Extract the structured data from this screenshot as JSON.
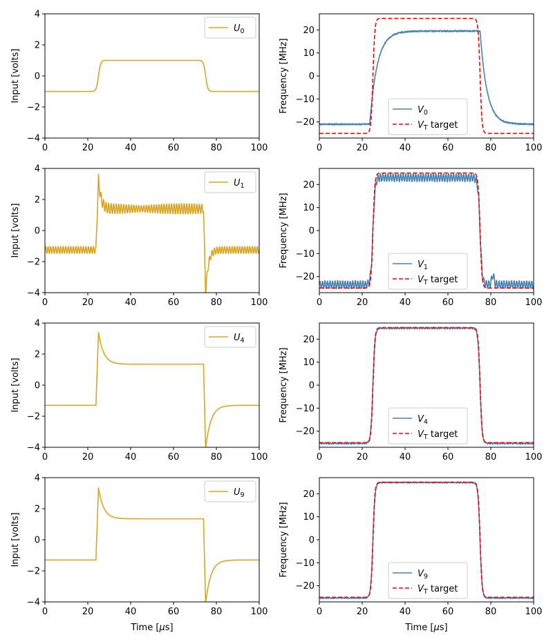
{
  "figure": {
    "x_label": "Time [μs]",
    "x_label_main": "Time [",
    "x_label_mu": "μ",
    "x_label_unit": "s]"
  },
  "colors": {
    "input": "#DAA520",
    "response": "#4682B4",
    "target": "#FF0000"
  },
  "chart_data": [
    {
      "id": "u0",
      "type": "line",
      "ylabel": "Input [volts]",
      "xlim": [
        0,
        100
      ],
      "ylim": [
        -4,
        4
      ],
      "xticks": [
        0,
        20,
        40,
        60,
        80,
        100
      ],
      "yticks": [
        -4,
        -2,
        0,
        2,
        4
      ],
      "legend_position": "top-right",
      "series": [
        {
          "name": "U0",
          "sym": "U",
          "sub": "0",
          "color": "#DAA520",
          "dash": false,
          "shape": {
            "kind": "pulse",
            "low": -1.0,
            "high": 1.0,
            "rise": 25,
            "fall": 75,
            "width": 0.5
          }
        }
      ]
    },
    {
      "id": "v0",
      "type": "line",
      "ylabel": "Frequency [MHz]",
      "xlim": [
        0,
        100
      ],
      "ylim": [
        -27,
        27
      ],
      "xticks": [
        0,
        20,
        40,
        60,
        80,
        100
      ],
      "yticks": [
        -20,
        -10,
        0,
        10,
        20
      ],
      "legend_position": "bottom-center",
      "series": [
        {
          "name": "V0",
          "sym": "V",
          "sub": "0",
          "color": "#4682B4",
          "dash": false,
          "shape": {
            "kind": "slow",
            "low": -21.0,
            "high": 19.5,
            "rise": 25,
            "fall": 75,
            "tau_rise": 3.5,
            "tau_fall": 3.2,
            "noise": 0.3
          }
        },
        {
          "name": "VT target",
          "sym": "V",
          "sub": "T",
          "suffix": " target",
          "color": "#FF0000",
          "dash": true,
          "shape": {
            "kind": "pulse",
            "low": -25,
            "high": 25,
            "rise": 25,
            "fall": 75,
            "width": 0.45
          }
        }
      ]
    },
    {
      "id": "u1",
      "type": "line",
      "ylabel": "Input [volts]",
      "xlim": [
        0,
        100
      ],
      "ylim": [
        -4,
        4
      ],
      "xticks": [
        0,
        20,
        40,
        60,
        80,
        100
      ],
      "yticks": [
        -4,
        -2,
        0,
        2,
        4
      ],
      "legend_position": "top-right",
      "series": [
        {
          "name": "U1",
          "sym": "U",
          "sub": "1",
          "color": "#DAA520",
          "dash": false,
          "shape": {
            "kind": "overshoot",
            "low": -1.25,
            "high": 1.4,
            "rise": 25,
            "fall": 75,
            "peak": 3.3,
            "trough": -4.1,
            "tau": 1.2,
            "ripple": 0.22,
            "freq": 0.85
          }
        }
      ]
    },
    {
      "id": "v1",
      "type": "line",
      "ylabel": "Frequency [MHz]",
      "xlim": [
        0,
        100
      ],
      "ylim": [
        -27,
        27
      ],
      "xticks": [
        0,
        20,
        40,
        60,
        80,
        100
      ],
      "yticks": [
        -20,
        -10,
        0,
        10,
        20
      ],
      "legend_position": "bottom-center",
      "series": [
        {
          "name": "V1",
          "sym": "V",
          "sub": "1",
          "color": "#4682B4",
          "dash": false,
          "shape": {
            "kind": "ringing",
            "low": -23.5,
            "high": 23.0,
            "rise": 25,
            "fall": 75,
            "width": 0.5,
            "ripple": 1.6,
            "freq": 0.85,
            "noise": 0.25
          }
        },
        {
          "name": "VT target",
          "sym": "V",
          "sub": "T",
          "suffix": " target",
          "color": "#FF0000",
          "dash": true,
          "shape": {
            "kind": "pulse",
            "low": -25,
            "high": 25,
            "rise": 25,
            "fall": 75,
            "width": 0.45
          }
        }
      ]
    },
    {
      "id": "u4",
      "type": "line",
      "ylabel": "Input [volts]",
      "xlim": [
        0,
        100
      ],
      "ylim": [
        -4,
        4
      ],
      "xticks": [
        0,
        20,
        40,
        60,
        80,
        100
      ],
      "yticks": [
        -4,
        -2,
        0,
        2,
        4
      ],
      "legend_position": "top-right",
      "series": [
        {
          "name": "U4",
          "sym": "U",
          "sub": "4",
          "color": "#DAA520",
          "dash": false,
          "shape": {
            "kind": "overshoot",
            "low": -1.3,
            "high": 1.35,
            "rise": 25,
            "fall": 75,
            "peak": 3.4,
            "trough": -4.1,
            "tau": 2.4,
            "ripple": 0,
            "freq": 0
          }
        }
      ]
    },
    {
      "id": "v4",
      "type": "line",
      "ylabel": "Frequency [MHz]",
      "xlim": [
        0,
        100
      ],
      "ylim": [
        -27,
        27
      ],
      "xticks": [
        0,
        20,
        40,
        60,
        80,
        100
      ],
      "yticks": [
        -20,
        -10,
        0,
        10,
        20
      ],
      "legend_position": "bottom-center",
      "series": [
        {
          "name": "V4",
          "sym": "V",
          "sub": "4",
          "color": "#4682B4",
          "dash": false,
          "shape": {
            "kind": "ringing",
            "low": -25.3,
            "high": 24.8,
            "rise": 25,
            "fall": 75,
            "width": 0.5,
            "ripple": 0.2,
            "freq": 0.85,
            "noise": 0.25
          }
        },
        {
          "name": "VT target",
          "sym": "V",
          "sub": "T",
          "suffix": " target",
          "color": "#FF0000",
          "dash": true,
          "shape": {
            "kind": "pulse",
            "low": -25,
            "high": 25,
            "rise": 25,
            "fall": 75,
            "width": 0.45
          }
        }
      ]
    },
    {
      "id": "u9",
      "type": "line",
      "ylabel": "Input [volts]",
      "xlim": [
        0,
        100
      ],
      "ylim": [
        -4,
        4
      ],
      "xticks": [
        0,
        20,
        40,
        60,
        80,
        100
      ],
      "yticks": [
        -4,
        -2,
        0,
        2,
        4
      ],
      "legend_position": "top-right",
      "series": [
        {
          "name": "U9",
          "sym": "U",
          "sub": "9",
          "color": "#DAA520",
          "dash": false,
          "shape": {
            "kind": "overshoot",
            "low": -1.3,
            "high": 1.35,
            "rise": 25,
            "fall": 75,
            "peak": 3.35,
            "trough": -4.1,
            "tau": 2.4,
            "ripple": 0,
            "freq": 0
          }
        }
      ]
    },
    {
      "id": "v9",
      "type": "line",
      "ylabel": "Frequency [MHz]",
      "xlim": [
        0,
        100
      ],
      "ylim": [
        -27,
        27
      ],
      "xticks": [
        0,
        20,
        40,
        60,
        80,
        100
      ],
      "yticks": [
        -20,
        -10,
        0,
        10,
        20
      ],
      "legend_position": "bottom-center",
      "series": [
        {
          "name": "V9",
          "sym": "V",
          "sub": "9",
          "color": "#4682B4",
          "dash": false,
          "shape": {
            "kind": "ringing",
            "low": -25.3,
            "high": 24.9,
            "rise": 25,
            "fall": 75,
            "width": 0.5,
            "ripple": 0.1,
            "freq": 0.85,
            "noise": 0.2
          }
        },
        {
          "name": "VT target",
          "sym": "V",
          "sub": "T",
          "suffix": " target",
          "color": "#FF0000",
          "dash": true,
          "shape": {
            "kind": "pulse",
            "low": -25,
            "high": 25,
            "rise": 25,
            "fall": 75,
            "width": 0.45
          }
        }
      ]
    }
  ]
}
